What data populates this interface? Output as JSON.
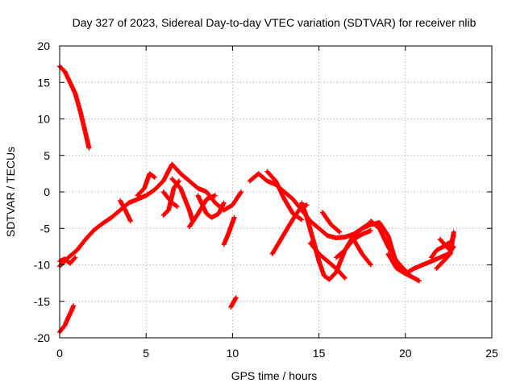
{
  "chart_data": {
    "type": "scatter",
    "title": "Day 327 of 2023, Sidereal Day-to-day VTEC variation (SDTVAR) for receiver nlib",
    "xlabel": "GPS time / hours",
    "ylabel": "SDTVAR / TECUs",
    "xlim": [
      0,
      25
    ],
    "ylim": [
      -20,
      20
    ],
    "xticks": [
      0,
      5,
      10,
      15,
      20,
      25
    ],
    "yticks": [
      20,
      15,
      10,
      5,
      0,
      -5,
      -10,
      -15,
      -20
    ],
    "grid": true,
    "marker": "+",
    "series": [
      {
        "name": "SDTVAR",
        "color": "#ff0000",
        "segments": [
          [
            [
              0.0,
              17.2
            ],
            [
              0.3,
              16.5
            ],
            [
              0.6,
              15.0
            ],
            [
              0.9,
              13.5
            ],
            [
              1.2,
              11.0
            ],
            [
              1.5,
              8.0
            ],
            [
              1.7,
              6.0
            ]
          ],
          [
            [
              0.0,
              -19.2
            ],
            [
              0.3,
              -18.3
            ],
            [
              0.5,
              -17.2
            ],
            [
              0.7,
              -16.2
            ],
            [
              0.8,
              -15.6
            ]
          ],
          [
            [
              0.0,
              -10.2
            ],
            [
              0.5,
              -9.0
            ],
            [
              1.0,
              -8.0
            ],
            [
              1.5,
              -6.5
            ],
            [
              2.0,
              -5.2
            ],
            [
              2.5,
              -4.3
            ],
            [
              3.0,
              -3.5
            ],
            [
              3.5,
              -2.5
            ],
            [
              4.0,
              -1.5
            ],
            [
              4.5,
              -1.0
            ],
            [
              5.0,
              -0.5
            ],
            [
              5.5,
              0.3
            ],
            [
              6.0,
              1.5
            ],
            [
              6.5,
              3.8
            ],
            [
              7.0,
              2.5
            ],
            [
              7.5,
              1.5
            ],
            [
              8.0,
              0.5
            ],
            [
              8.5,
              0.0
            ],
            [
              9.0,
              -1.5
            ],
            [
              9.5,
              -2.5
            ],
            [
              10.0,
              -1.8
            ],
            [
              10.5,
              0.0
            ]
          ],
          [
            [
              0.0,
              -9.5
            ],
            [
              0.3,
              -9.2
            ],
            [
              0.6,
              -9.8
            ],
            [
              0.9,
              -9.0
            ]
          ],
          [
            [
              3.5,
              -1.2
            ],
            [
              3.8,
              -2.5
            ],
            [
              4.1,
              -4.0
            ]
          ],
          [
            [
              4.5,
              -0.5
            ],
            [
              4.9,
              0.5
            ],
            [
              5.2,
              2.5
            ],
            [
              5.5,
              2.0
            ]
          ],
          [
            [
              6.0,
              0.0
            ],
            [
              6.5,
              -1.5
            ],
            [
              6.8,
              -2.0
            ]
          ],
          [
            [
              6.0,
              -3.2
            ],
            [
              6.3,
              -2.5
            ],
            [
              6.6,
              0.5
            ],
            [
              6.9,
              1.5
            ]
          ],
          [
            [
              6.5,
              1.8
            ],
            [
              7.0,
              0.5
            ],
            [
              7.5,
              -2.5
            ],
            [
              7.7,
              -4.0
            ]
          ],
          [
            [
              7.5,
              -4.8
            ],
            [
              8.0,
              -3.0
            ],
            [
              8.5,
              -1.0
            ],
            [
              9.0,
              -0.5
            ]
          ],
          [
            [
              8.0,
              -0.5
            ],
            [
              8.5,
              -3.0
            ],
            [
              8.8,
              -3.5
            ],
            [
              9.2,
              -3.0
            ],
            [
              9.5,
              -1.5
            ]
          ],
          [
            [
              9.5,
              -7.2
            ],
            [
              9.8,
              -5.5
            ],
            [
              10.1,
              -3.5
            ]
          ],
          [
            [
              9.9,
              -15.8
            ],
            [
              10.2,
              -14.5
            ]
          ],
          [
            [
              11.0,
              1.5
            ],
            [
              11.5,
              2.5
            ],
            [
              12.0,
              1.5
            ],
            [
              12.5,
              1.0
            ],
            [
              13.0,
              0.0
            ],
            [
              13.5,
              -1.0
            ],
            [
              14.0,
              -2.5
            ],
            [
              14.5,
              -4.0
            ],
            [
              15.0,
              -5.0
            ],
            [
              15.5,
              -6.0
            ],
            [
              16.0,
              -6.3
            ],
            [
              16.5,
              -6.2
            ],
            [
              17.0,
              -5.8
            ],
            [
              17.5,
              -5.0
            ],
            [
              18.0,
              -4.5
            ],
            [
              18.5,
              -4.2
            ],
            [
              19.0,
              -6.0
            ],
            [
              19.5,
              -10.0
            ],
            [
              20.0,
              -11.2
            ],
            [
              20.5,
              -10.5
            ],
            [
              21.0,
              -10.0
            ],
            [
              21.5,
              -9.5
            ],
            [
              22.0,
              -9.0
            ],
            [
              22.5,
              -8.5
            ],
            [
              22.8,
              -7.5
            ]
          ],
          [
            [
              12.0,
              2.8
            ],
            [
              12.5,
              1.5
            ],
            [
              13.0,
              -1.0
            ],
            [
              13.5,
              -3.0
            ],
            [
              14.0,
              -3.8
            ]
          ],
          [
            [
              12.3,
              -8.5
            ],
            [
              12.8,
              -6.5
            ],
            [
              13.3,
              -4.5
            ],
            [
              13.7,
              -3.0
            ],
            [
              14.0,
              -2.0
            ],
            [
              14.3,
              -1.8
            ]
          ],
          [
            [
              14.0,
              -1.5
            ],
            [
              14.3,
              -3.5
            ],
            [
              14.6,
              -6.0
            ],
            [
              15.0,
              -9.5
            ],
            [
              15.3,
              -11.5
            ],
            [
              15.6,
              -12.0
            ],
            [
              16.0,
              -11.0
            ],
            [
              16.5,
              -8.0
            ],
            [
              17.0,
              -6.0
            ],
            [
              17.5,
              -5.0
            ],
            [
              18.0,
              -4.2
            ]
          ],
          [
            [
              14.5,
              -7.0
            ],
            [
              15.0,
              -8.5
            ],
            [
              15.5,
              -9.5
            ],
            [
              16.0,
              -10.5
            ],
            [
              16.5,
              -11.8
            ]
          ],
          [
            [
              15.2,
              -2.8
            ],
            [
              15.7,
              -4.5
            ],
            [
              16.2,
              -5.5
            ]
          ],
          [
            [
              16.0,
              -9.0
            ],
            [
              16.5,
              -8.0
            ],
            [
              17.0,
              -6.5
            ],
            [
              17.5,
              -5.8
            ],
            [
              18.0,
              -5.3
            ]
          ],
          [
            [
              17.0,
              -6.5
            ],
            [
              17.5,
              -8.5
            ],
            [
              18.0,
              -10.0
            ]
          ],
          [
            [
              18.0,
              -4.0
            ],
            [
              18.5,
              -5.0
            ],
            [
              19.0,
              -7.5
            ],
            [
              19.5,
              -9.5
            ],
            [
              20.0,
              -10.8
            ],
            [
              20.3,
              -11.5
            ]
          ],
          [
            [
              19.0,
              -8.5
            ],
            [
              19.5,
              -10.5
            ],
            [
              20.0,
              -11.2
            ],
            [
              20.5,
              -11.8
            ],
            [
              20.8,
              -12.2
            ]
          ],
          [
            [
              21.5,
              -9.0
            ],
            [
              21.8,
              -8.0
            ],
            [
              22.2,
              -7.5
            ],
            [
              22.5,
              -7.0
            ]
          ],
          [
            [
              21.8,
              -10.5
            ],
            [
              22.2,
              -9.5
            ],
            [
              22.6,
              -8.5
            ],
            [
              22.8,
              -5.5
            ]
          ],
          [
            [
              22.0,
              -6.5
            ],
            [
              22.5,
              -7.8
            ],
            [
              22.8,
              -6.0
            ]
          ]
        ]
      }
    ]
  }
}
